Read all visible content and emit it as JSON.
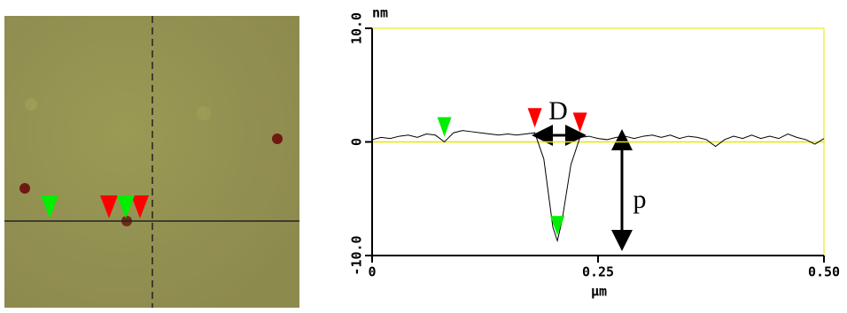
{
  "chart_data": {
    "type": "line",
    "y_unit": "nm",
    "x_unit": "μm",
    "xlim": [
      0,
      0.5
    ],
    "ylim": [
      -10,
      10
    ],
    "xticks": [
      0,
      0.25,
      {
        "value": 0.5,
        "label": "0.50"
      }
    ],
    "yticks": [
      {
        "value": 10,
        "label": "10.0"
      },
      0,
      {
        "value": -10,
        "label": "-10.0"
      }
    ],
    "color": "#000000",
    "frame_color": "#e6e600",
    "x": [
      0,
      0.01,
      0.02,
      0.03,
      0.04,
      0.05,
      0.06,
      0.07,
      0.08,
      0.09,
      0.1,
      0.11,
      0.12,
      0.13,
      0.14,
      0.15,
      0.16,
      0.17,
      0.18,
      0.19,
      0.2,
      0.205,
      0.21,
      0.22,
      0.23,
      0.24,
      0.25,
      0.26,
      0.27,
      0.28,
      0.29,
      0.3,
      0.31,
      0.32,
      0.33,
      0.34,
      0.35,
      0.36,
      0.37,
      0.38,
      0.39,
      0.4,
      0.41,
      0.42,
      0.43,
      0.44,
      0.45,
      0.46,
      0.47,
      0.48,
      0.49,
      0.5
    ],
    "values": [
      0.2,
      0.4,
      0.3,
      0.5,
      0.6,
      0.4,
      0.7,
      0.6,
      0.0,
      0.8,
      1.0,
      0.9,
      0.8,
      0.7,
      0.6,
      0.7,
      0.6,
      0.7,
      0.8,
      -1.5,
      -7.5,
      -8.7,
      -7.0,
      -2.0,
      0.4,
      0.5,
      0.3,
      0.2,
      0.4,
      0.5,
      0.3,
      0.5,
      0.6,
      0.4,
      0.6,
      0.3,
      0.5,
      0.4,
      0.2,
      -0.4,
      0.2,
      0.5,
      0.3,
      0.6,
      0.3,
      0.5,
      0.3,
      0.7,
      0.4,
      0.2,
      -0.2,
      0.3
    ],
    "markers": [
      {
        "x": 0.08,
        "y": 0.0,
        "color": "#00ee00"
      },
      {
        "x": 0.18,
        "y": 0.8,
        "color": "#ff0000"
      },
      {
        "x": 0.23,
        "y": 0.4,
        "color": "#ff0000"
      },
      {
        "x": 0.205,
        "y": -8.7,
        "color": "#00ee00"
      }
    ],
    "annotations": [
      "D",
      "p"
    ]
  }
}
